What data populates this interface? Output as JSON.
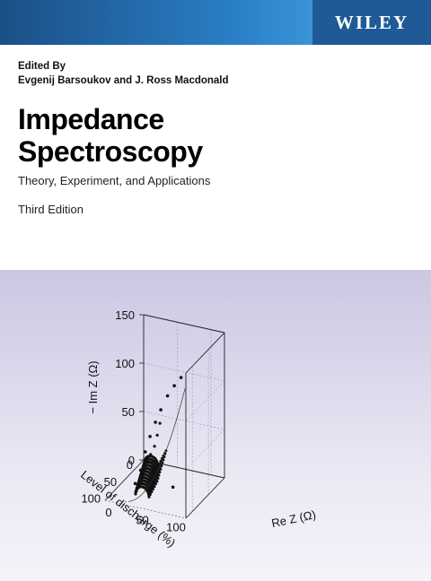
{
  "publisher": "WILEY",
  "editors_label": "Edited By",
  "editors": "Evgenij Barsoukov and J. Ross Macdonald",
  "title_line1": "Impedance",
  "title_line2": "Spectroscopy",
  "subtitle": "Theory, Experiment, and Applications",
  "edition": "Third Edition",
  "colors": {
    "publisher_blue": "#1f5a96",
    "header_gradient_start": "#1b4f86",
    "header_gradient_end": "#54b4ee",
    "plot_background": "#d8d2ea"
  },
  "chart_data": {
    "type": "scatter",
    "projection": "3d",
    "z_axis_label": "− Im Z (Ω)",
    "x_axis_label": "Re Z (Ω)",
    "y_axis_label": "Level of discharge (%)",
    "z_ticks": [
      "0",
      "50",
      "100",
      "150"
    ],
    "x_ticks": [
      "0",
      "50",
      "100"
    ],
    "y_ticks": [
      "0",
      "50",
      "100"
    ],
    "z_range": [
      0,
      150
    ],
    "x_range": [
      0,
      120
    ],
    "y_range": [
      0,
      120
    ],
    "grid": true
  }
}
